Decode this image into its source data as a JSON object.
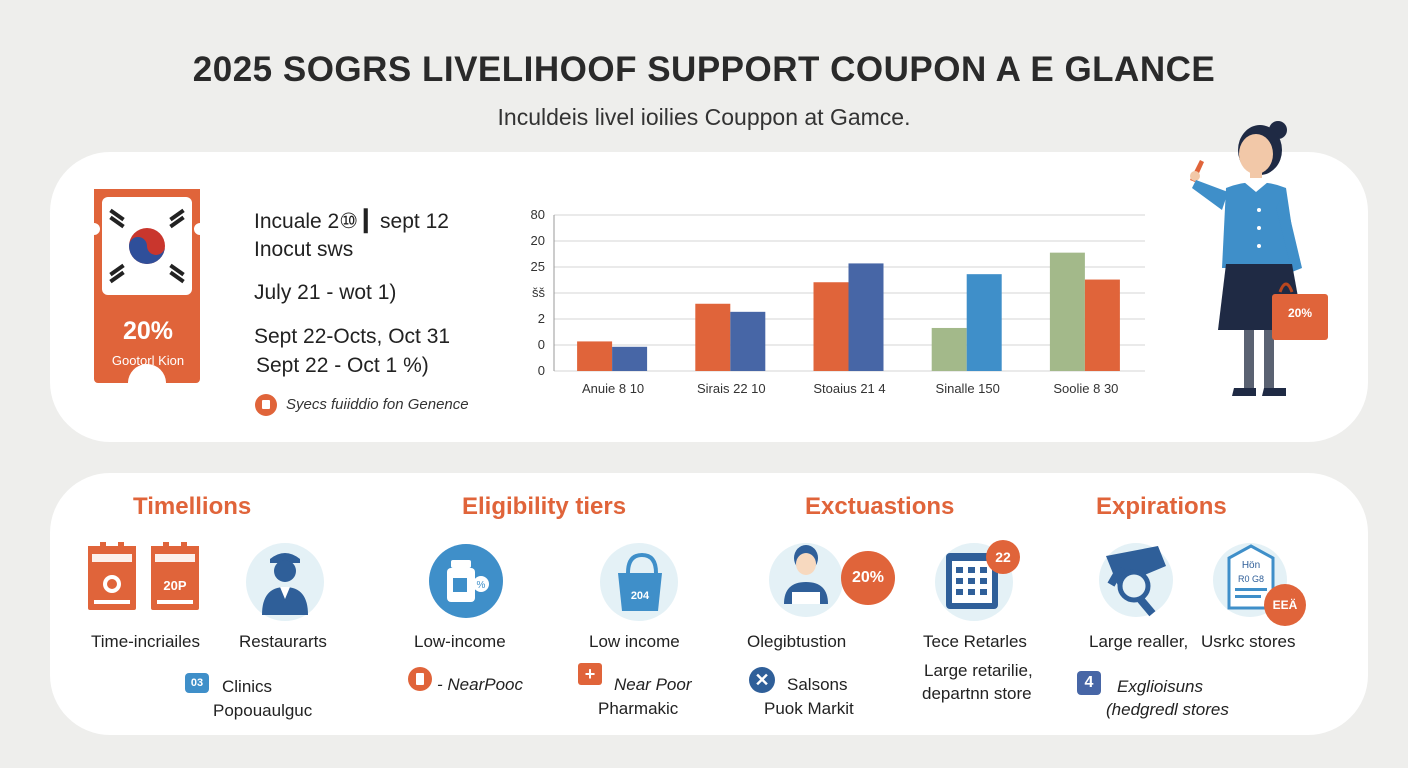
{
  "header": {
    "title": "2025 SOGRS LIVELIHOOF SUPPORT COUPON A E GLANCE",
    "subtitle": "Inculdeis livel ioilies Couppon at Gamce."
  },
  "coupon": {
    "percent": "20%",
    "label": "Gootorl Kion"
  },
  "dates": {
    "line1": "Incuale 2⑩ ▎sept 12",
    "line2": "Inocut sws",
    "line3": "July 21 - wot 1)",
    "line4": "Sept 22-Octs, Oct 31",
    "line5": "Sept 22 - Oct 1   %)",
    "note": "Syecs fuiiddio fon Genence"
  },
  "chart_data": {
    "type": "bar",
    "categories": [
      "Anuie 8 10",
      "Sirais 22 10",
      "Stoaius 21 4",
      "Sinalle 150",
      "Soolie 8 30"
    ],
    "y_tick_labels": [
      "80",
      "20",
      "25",
      "šš",
      "2",
      "0",
      "0"
    ],
    "series": [
      {
        "values": [
          1.1,
          2.5,
          3.3,
          1.6,
          4.4
        ],
        "colors": [
          "#e0643a",
          "#e0643a",
          "#e0643a",
          "#a3b98a",
          "#a3b98a"
        ]
      },
      {
        "values": [
          0.9,
          2.2,
          4.0,
          3.6,
          3.4
        ],
        "colors": [
          "#4766a6",
          "#4766a6",
          "#4766a6",
          "#3f8fc9",
          "#e0643a"
        ]
      }
    ],
    "ylim": [
      0,
      5.8
    ],
    "grid": true
  },
  "sections": {
    "s1": {
      "title": "Timellions",
      "item1": "Time-incriailes",
      "item2": "Restaurarts",
      "foot1": "Clinics",
      "foot2": "Popouaulguc",
      "ticket_text": "20P"
    },
    "s2": {
      "title": "Eligibility tiers",
      "item1": "Low-income",
      "item2": "Low income",
      "foot1": "- NearPooc",
      "foot2": "Near Poor",
      "foot3": "Pharmakic",
      "bag_text": "204"
    },
    "s3": {
      "title": "Exctuastions",
      "item1": "Olegibtustion",
      "item2": "Tece Retarles",
      "item3": "Large retarilie,",
      "item4": "departnn store",
      "foot1": "Salsons",
      "foot2": "Puok Markit",
      "badge1": "20%",
      "badge2": "22"
    },
    "s4": {
      "title": "Expirations",
      "item1": "Large realler,",
      "item2": "Usrkc stores",
      "foot1": "Exglioisuns",
      "foot2": "(hedgredl stores",
      "foot_badge": "4",
      "poster_text1": "Hön",
      "poster_text2": "R0 G8",
      "badge": "EEÄ"
    }
  },
  "person": {
    "bag_text": "20%"
  },
  "colors": {
    "orange": "#e0643a",
    "blue": "#4766a6",
    "light_blue": "#3f8fc9",
    "green": "#a3b98a",
    "navy": "#1f2a44"
  }
}
